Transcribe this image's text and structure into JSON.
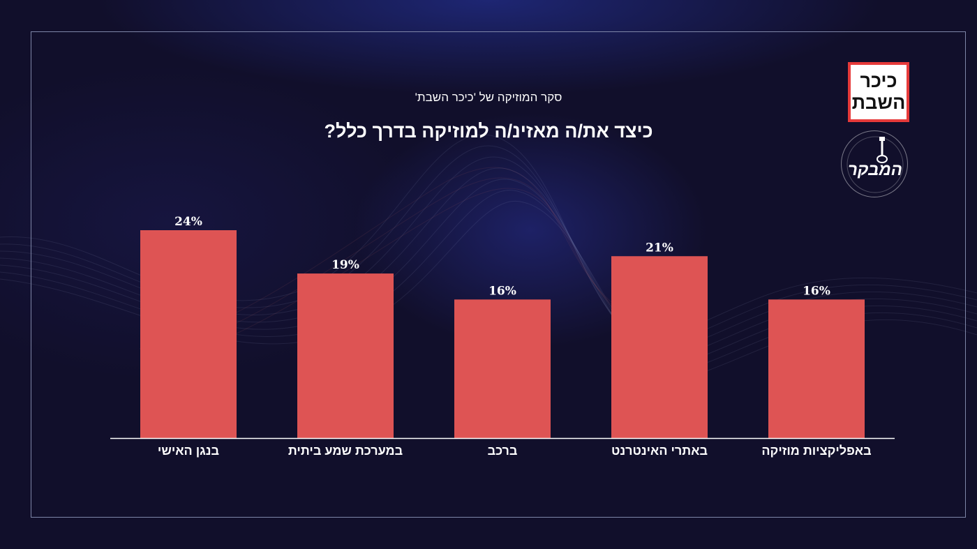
{
  "header": {
    "subtitle": "סקר המוזיקה של 'כיכר השבת'",
    "title": "כיצד את/ה מאזינ/ה למוזיקה בדרך כלל?"
  },
  "logo": {
    "line1": "כיכר",
    "line2": "השבת",
    "border_color": "#e63a3a"
  },
  "band_logo": {
    "name": "המבקר",
    "icon": "guitar-icon"
  },
  "colors": {
    "bar": "#de5454",
    "background": "#110f2b",
    "text": "#ffffff"
  },
  "chart_data": {
    "type": "bar",
    "title": "כיצד את/ה מאזינ/ה למוזיקה בדרך כלל?",
    "subtitle": "סקר המוזיקה של 'כיכר השבת'",
    "categories": [
      "בנגן האישי",
      "במערכת שמע ביתית",
      "ברכב",
      "באתרי האינטרנט",
      "באפליקציות מוזיקה"
    ],
    "values": [
      24,
      19,
      16,
      21,
      16
    ],
    "value_labels": [
      "24%",
      "19%",
      "16%",
      "21%",
      "16%"
    ],
    "unit": "%",
    "ylim": [
      0,
      24
    ],
    "grid": false,
    "legend": "none"
  }
}
